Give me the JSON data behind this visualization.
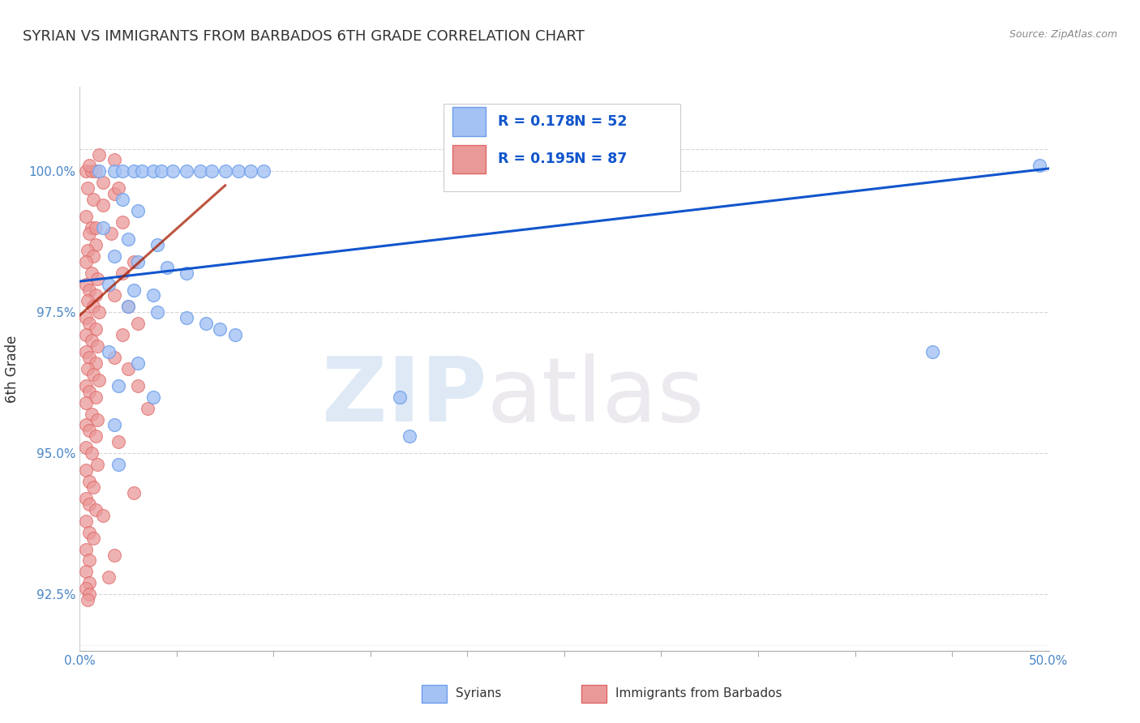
{
  "title": "SYRIAN VS IMMIGRANTS FROM BARBADOS 6TH GRADE CORRELATION CHART",
  "source_text": "Source: ZipAtlas.com",
  "ylabel": "6th Grade",
  "x_min": 0.0,
  "x_max": 0.5,
  "y_min": 91.5,
  "y_max": 101.5,
  "ytick_labels": [
    "92.5%",
    "95.0%",
    "97.5%",
    "100.0%"
  ],
  "ytick_values": [
    92.5,
    95.0,
    97.5,
    100.0
  ],
  "blue_color": "#a4c2f4",
  "blue_edge_color": "#6d9eeb",
  "pink_color": "#ea9999",
  "pink_edge_color": "#e06666",
  "trend_blue_color": "#1155cc",
  "trend_pink_color": "#a61c00",
  "grid_color": "#cccccc",
  "tick_color": "#4a86c8",
  "blue_trend_x": [
    0.0,
    0.5
  ],
  "blue_trend_y": [
    98.05,
    100.05
  ],
  "pink_trend_x": [
    0.0,
    0.075
  ],
  "pink_trend_y": [
    97.45,
    99.75
  ],
  "blue_scatter": [
    [
      0.01,
      100.0
    ],
    [
      0.018,
      100.0
    ],
    [
      0.022,
      100.0
    ],
    [
      0.028,
      100.0
    ],
    [
      0.032,
      100.0
    ],
    [
      0.038,
      100.0
    ],
    [
      0.042,
      100.0
    ],
    [
      0.048,
      100.0
    ],
    [
      0.055,
      100.0
    ],
    [
      0.062,
      100.0
    ],
    [
      0.068,
      100.0
    ],
    [
      0.075,
      100.0
    ],
    [
      0.082,
      100.0
    ],
    [
      0.088,
      100.0
    ],
    [
      0.095,
      100.0
    ],
    [
      0.022,
      99.5
    ],
    [
      0.03,
      99.3
    ],
    [
      0.012,
      99.0
    ],
    [
      0.025,
      98.8
    ],
    [
      0.04,
      98.7
    ],
    [
      0.018,
      98.5
    ],
    [
      0.03,
      98.4
    ],
    [
      0.045,
      98.3
    ],
    [
      0.055,
      98.2
    ],
    [
      0.015,
      98.0
    ],
    [
      0.028,
      97.9
    ],
    [
      0.038,
      97.8
    ],
    [
      0.025,
      97.6
    ],
    [
      0.04,
      97.5
    ],
    [
      0.055,
      97.4
    ],
    [
      0.065,
      97.3
    ],
    [
      0.072,
      97.2
    ],
    [
      0.08,
      97.1
    ],
    [
      0.015,
      96.8
    ],
    [
      0.03,
      96.6
    ],
    [
      0.02,
      96.2
    ],
    [
      0.038,
      96.0
    ],
    [
      0.165,
      96.0
    ],
    [
      0.018,
      95.5
    ],
    [
      0.17,
      95.3
    ],
    [
      0.02,
      94.8
    ],
    [
      0.44,
      96.8
    ],
    [
      0.495,
      100.1
    ]
  ],
  "pink_scatter": [
    [
      0.003,
      100.0
    ],
    [
      0.006,
      100.0
    ],
    [
      0.008,
      100.0
    ],
    [
      0.004,
      99.7
    ],
    [
      0.007,
      99.5
    ],
    [
      0.003,
      99.2
    ],
    [
      0.006,
      99.0
    ],
    [
      0.005,
      98.9
    ],
    [
      0.008,
      98.7
    ],
    [
      0.004,
      98.6
    ],
    [
      0.007,
      98.5
    ],
    [
      0.003,
      98.4
    ],
    [
      0.006,
      98.2
    ],
    [
      0.009,
      98.1
    ],
    [
      0.003,
      98.0
    ],
    [
      0.005,
      97.9
    ],
    [
      0.008,
      97.8
    ],
    [
      0.004,
      97.7
    ],
    [
      0.007,
      97.6
    ],
    [
      0.01,
      97.5
    ],
    [
      0.003,
      97.4
    ],
    [
      0.005,
      97.3
    ],
    [
      0.008,
      97.2
    ],
    [
      0.003,
      97.1
    ],
    [
      0.006,
      97.0
    ],
    [
      0.009,
      96.9
    ],
    [
      0.003,
      96.8
    ],
    [
      0.005,
      96.7
    ],
    [
      0.008,
      96.6
    ],
    [
      0.004,
      96.5
    ],
    [
      0.007,
      96.4
    ],
    [
      0.01,
      96.3
    ],
    [
      0.003,
      96.2
    ],
    [
      0.005,
      96.1
    ],
    [
      0.008,
      96.0
    ],
    [
      0.003,
      95.9
    ],
    [
      0.006,
      95.7
    ],
    [
      0.009,
      95.6
    ],
    [
      0.003,
      95.5
    ],
    [
      0.005,
      95.4
    ],
    [
      0.008,
      95.3
    ],
    [
      0.003,
      95.1
    ],
    [
      0.006,
      95.0
    ],
    [
      0.009,
      94.8
    ],
    [
      0.003,
      94.7
    ],
    [
      0.005,
      94.5
    ],
    [
      0.007,
      94.4
    ],
    [
      0.003,
      94.2
    ],
    [
      0.005,
      94.1
    ],
    [
      0.008,
      94.0
    ],
    [
      0.003,
      93.8
    ],
    [
      0.005,
      93.6
    ],
    [
      0.007,
      93.5
    ],
    [
      0.003,
      93.3
    ],
    [
      0.005,
      93.1
    ],
    [
      0.003,
      92.9
    ],
    [
      0.005,
      92.7
    ],
    [
      0.003,
      92.6
    ],
    [
      0.005,
      92.5
    ],
    [
      0.004,
      92.4
    ],
    [
      0.018,
      99.6
    ],
    [
      0.012,
      99.4
    ],
    [
      0.022,
      99.1
    ],
    [
      0.016,
      98.9
    ],
    [
      0.028,
      98.4
    ],
    [
      0.022,
      98.2
    ],
    [
      0.018,
      97.8
    ],
    [
      0.025,
      97.6
    ],
    [
      0.03,
      97.3
    ],
    [
      0.022,
      97.1
    ],
    [
      0.018,
      96.7
    ],
    [
      0.025,
      96.5
    ],
    [
      0.03,
      96.2
    ],
    [
      0.035,
      95.8
    ],
    [
      0.02,
      95.2
    ],
    [
      0.028,
      94.3
    ],
    [
      0.012,
      93.9
    ],
    [
      0.018,
      93.2
    ],
    [
      0.015,
      92.8
    ],
    [
      0.01,
      100.3
    ],
    [
      0.018,
      100.2
    ],
    [
      0.005,
      100.1
    ],
    [
      0.012,
      99.8
    ],
    [
      0.02,
      99.7
    ],
    [
      0.008,
      99.0
    ]
  ]
}
